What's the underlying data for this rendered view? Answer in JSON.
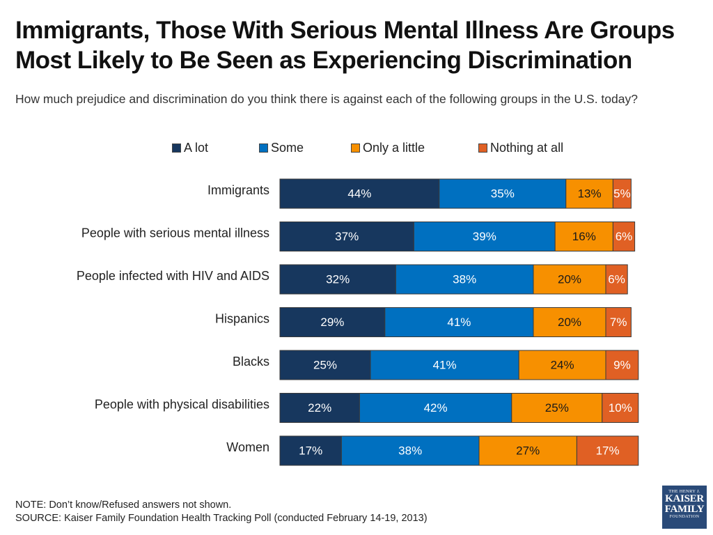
{
  "title": "Immigrants, Those With Serious Mental Illness Are Groups\nMost Likely to Be Seen as Experiencing Discrimination",
  "subtitle": "How much prejudice and discrimination do you think there is against each of the following groups in the U.S. today?",
  "notes": {
    "note": "NOTE: Don’t know/Refused answers not shown.",
    "source": "SOURCE: Kaiser Family Foundation Health Tracking Poll (conducted February 14-19, 2013)"
  },
  "logo": {
    "line1": "THE HENRY J.",
    "line2": "KAISER",
    "line3": "FAMILY",
    "line4": "FOUNDATION"
  },
  "chart_data": {
    "type": "bar",
    "orientation": "horizontal",
    "stacked": true,
    "legend_placement": "top",
    "grid": false,
    "categories": [
      "Immigrants",
      "People with serious mental illness",
      "People infected with HIV and AIDS",
      "Hispanics",
      "Blacks",
      "People with physical disabilities",
      "Women"
    ],
    "series": [
      {
        "name": "A lot",
        "color": "#17375e",
        "label_color": "#ffffff",
        "values": [
          44,
          37,
          32,
          29,
          25,
          22,
          17
        ]
      },
      {
        "name": "Some",
        "color": "#0070c0",
        "label_color": "#ffffff",
        "values": [
          35,
          39,
          38,
          41,
          41,
          42,
          38
        ]
      },
      {
        "name": "Only a little",
        "color": "#f79000",
        "label_color": "#1a1a1a",
        "values": [
          13,
          16,
          20,
          20,
          24,
          25,
          27
        ]
      },
      {
        "name": "Nothing at all",
        "color": "#e06024",
        "label_color": "#ffffff",
        "values": [
          5,
          6,
          6,
          7,
          9,
          10,
          17
        ]
      }
    ],
    "data_labels": [
      [
        "44%",
        "35%",
        "13%",
        "5%"
      ],
      [
        "37%",
        "39%",
        "16%",
        "6%"
      ],
      [
        "32%",
        "38%",
        "20%",
        "6%"
      ],
      [
        "29%",
        "41%",
        "20%",
        "7%"
      ],
      [
        "25%",
        "41%",
        "24%",
        "9%"
      ],
      [
        "22%",
        "42%",
        "25%",
        "10%"
      ],
      [
        "17%",
        "38%",
        "27%",
        "17%"
      ]
    ],
    "xlim": [
      0,
      100
    ]
  }
}
